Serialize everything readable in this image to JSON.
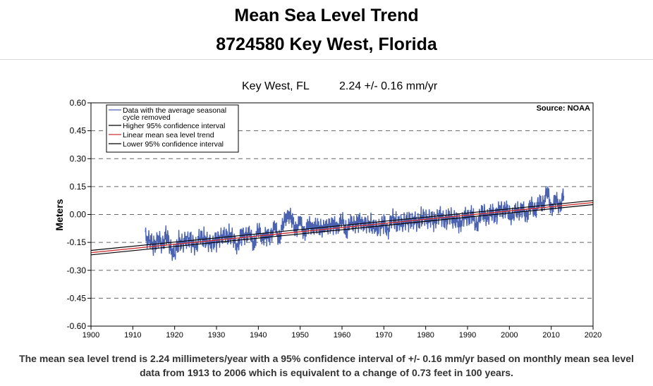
{
  "header": {
    "title": "Mean Sea Level Trend",
    "station": "8724580 Key West, Florida"
  },
  "subtitle": {
    "location": "Key West, FL",
    "rate": "2.24 +/- 0.16 mm/yr"
  },
  "caption": {
    "line1": "The mean sea level trend is 2.24 millimeters/year with a 95% confidence interval of +/- 0.16 mm/yr based on monthly mean sea level",
    "line2": "data from 1913 to 2006 which is equivalent to a change of 0.73 feet in 100 years."
  },
  "chart_data": {
    "type": "line",
    "ylabel": "Meters",
    "source": "Source: NOAA",
    "xlim": [
      1900,
      2020
    ],
    "ylim": [
      -0.6,
      0.6
    ],
    "x_ticks": [
      "1900",
      "1910",
      "1920",
      "1930",
      "1940",
      "1950",
      "1960",
      "1970",
      "1980",
      "1990",
      "2000",
      "2010",
      "2020"
    ],
    "y_ticks": [
      "0.60",
      "0.45",
      "0.30",
      "0.15",
      "0.00",
      "-0.15",
      "-0.30",
      "-0.45",
      "-0.60"
    ],
    "grid": "horizontal-dashed",
    "legend": {
      "placement": "top-left",
      "entries": [
        {
          "label_line1": "Data with the average seasonal",
          "label_line2": "cycle removed",
          "color": "#4a62b0"
        },
        {
          "label_line1": "Higher 95% confidence interval",
          "label_line2": "",
          "color": "#000000"
        },
        {
          "label_line1": "Linear mean sea level trend",
          "label_line2": "",
          "color": "#cc3333"
        },
        {
          "label_line1": "Lower 95% confidence interval",
          "label_line2": "",
          "color": "#000000"
        }
      ]
    },
    "trend": {
      "x": [
        1900,
        2020
      ],
      "y": [
        -0.205,
        0.064
      ]
    },
    "upper_ci": {
      "x": [
        1900,
        2020
      ],
      "y": [
        -0.193,
        0.075
      ]
    },
    "lower_ci": {
      "x": [
        1900,
        2020
      ],
      "y": [
        -0.217,
        0.053
      ]
    },
    "series": [
      {
        "name": "Data with the average seasonal cycle removed",
        "color": "#4a62b0",
        "x": [
          1913.0,
          1914.0,
          1915.0,
          1916.0,
          1917.0,
          1918.0,
          1919.0,
          1920.0,
          1921.0,
          1922.0,
          1923.0,
          1924.0,
          1925.0,
          1926.0,
          1927.0,
          1928.0,
          1929.0,
          1930.0,
          1931.0,
          1932.0,
          1933.0,
          1934.0,
          1935.0,
          1936.0,
          1937.0,
          1938.0,
          1939.0,
          1940.0,
          1941.0,
          1942.0,
          1943.0,
          1944.0,
          1945.0,
          1946.0,
          1947.0,
          1948.0,
          1949.0,
          1950.0,
          1951.0,
          1952.0,
          1953.0,
          1954.0,
          1955.0,
          1956.0,
          1957.0,
          1958.0,
          1959.0,
          1960.0,
          1961.0,
          1962.0,
          1963.0,
          1964.0,
          1965.0,
          1966.0,
          1967.0,
          1968.0,
          1969.0,
          1970.0,
          1971.0,
          1972.0,
          1973.0,
          1974.0,
          1975.0,
          1976.0,
          1977.0,
          1978.0,
          1979.0,
          1980.0,
          1981.0,
          1982.0,
          1983.0,
          1984.0,
          1985.0,
          1986.0,
          1987.0,
          1988.0,
          1989.0,
          1990.0,
          1991.0,
          1992.0,
          1993.0,
          1994.0,
          1995.0,
          1996.0,
          1997.0,
          1998.0,
          1999.0,
          2000.0,
          2001.0,
          2002.0,
          2003.0,
          2004.0,
          2005.0,
          2006.0,
          2007.0,
          2008.0,
          2009.0,
          2010.0,
          2011.0,
          2012.0,
          2013.0
        ],
        "y": [
          -0.12,
          -0.14,
          -0.17,
          -0.13,
          -0.16,
          -0.11,
          -0.18,
          -0.22,
          -0.14,
          -0.16,
          -0.12,
          -0.15,
          -0.17,
          -0.13,
          -0.12,
          -0.16,
          -0.14,
          -0.15,
          -0.11,
          -0.13,
          -0.1,
          -0.14,
          -0.16,
          -0.12,
          -0.1,
          -0.12,
          -0.15,
          -0.09,
          -0.11,
          -0.13,
          -0.1,
          -0.08,
          -0.12,
          -0.06,
          0.02,
          -0.04,
          -0.07,
          -0.05,
          -0.09,
          -0.07,
          -0.05,
          -0.08,
          -0.06,
          -0.09,
          -0.04,
          -0.07,
          -0.05,
          -0.04,
          -0.08,
          -0.06,
          -0.04,
          -0.05,
          -0.03,
          -0.07,
          -0.04,
          -0.09,
          -0.06,
          -0.05,
          -0.08,
          -0.02,
          -0.04,
          -0.06,
          -0.03,
          -0.04,
          -0.02,
          -0.05,
          -0.01,
          -0.03,
          -0.02,
          -0.04,
          0.0,
          -0.02,
          -0.03,
          -0.01,
          -0.03,
          -0.05,
          -0.02,
          -0.01,
          0.0,
          -0.06,
          -0.01,
          0.01,
          -0.02,
          0.02,
          -0.01,
          0.04,
          0.02,
          0.01,
          -0.01,
          0.03,
          0.02,
          0.0,
          0.04,
          0.03,
          0.05,
          0.06,
          0.12,
          0.04,
          0.07,
          0.05,
          0.1
        ]
      }
    ]
  }
}
